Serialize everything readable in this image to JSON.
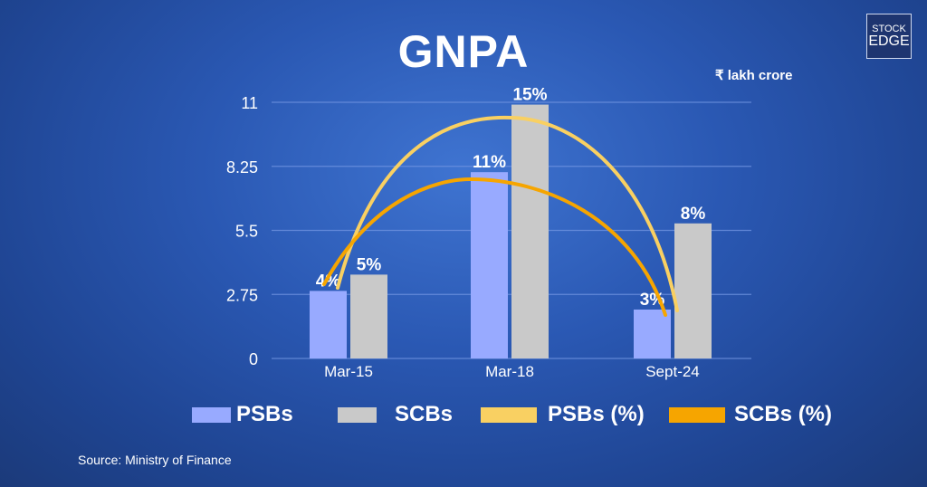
{
  "header": {
    "title": "GNPA",
    "unit": "₹ lakh crore"
  },
  "logo": {
    "line1": "STOCK",
    "line2": "EDGE"
  },
  "source": "Source: Ministry of Finance",
  "colors": {
    "psbs": "#98aaff",
    "scbs": "#c9c9c9",
    "psbs_pct": "#f9d062",
    "scbs_pct": "#f6a500",
    "grid": "#6f93e0"
  },
  "chart_data": {
    "type": "bar",
    "title": "GNPA",
    "ylabel": "₹ lakh crore",
    "xlabel": "",
    "categories": [
      "Mar-15",
      "Mar-18",
      "Sept-24"
    ],
    "ylim": [
      0,
      11
    ],
    "yticks": [
      "0",
      "2.75",
      "5.5",
      "8.25",
      "11"
    ],
    "ytick_values": [
      0,
      2.75,
      5.5,
      8.25,
      11
    ],
    "grid": true,
    "legend_placement": "bottom",
    "series": [
      {
        "name": "PSBs",
        "values": [
          2.9,
          8.0,
          2.1
        ],
        "labels": [
          "4%",
          "11%",
          "3%"
        ]
      },
      {
        "name": "SCBs",
        "values": [
          3.6,
          10.9,
          5.8
        ],
        "labels": [
          "5%",
          "15%",
          "8%"
        ]
      }
    ],
    "line_series": [
      {
        "name": "PSBs (%)",
        "values": [
          4,
          11,
          3
        ]
      },
      {
        "name": "SCBs (%)",
        "values": [
          5,
          15,
          8
        ]
      }
    ]
  },
  "legend": [
    "PSBs",
    "SCBs",
    "PSBs (%)",
    "SCBs (%)"
  ]
}
